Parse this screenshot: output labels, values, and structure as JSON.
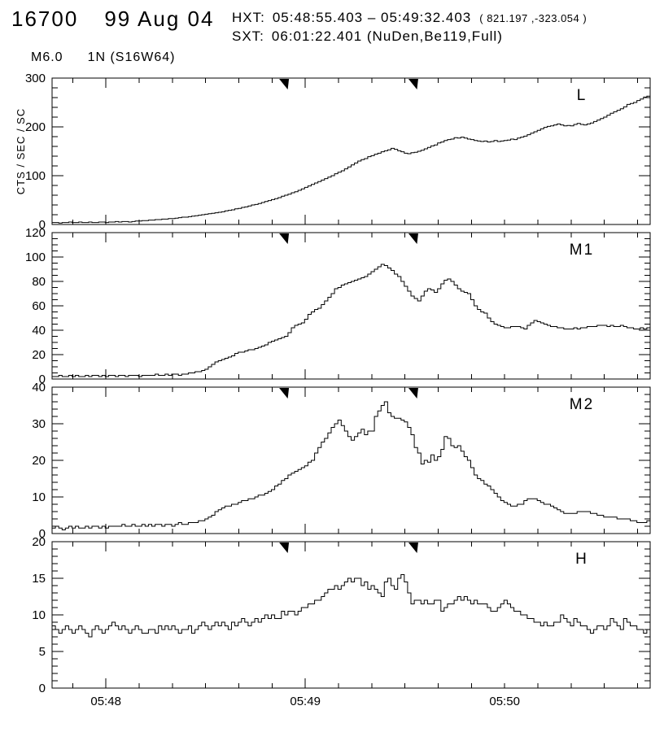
{
  "header": {
    "event_id": "16700",
    "date": "99 Aug 04",
    "hxt_label": "HXT:",
    "hxt_interval": "05:48:55.403 – 05:49:32.403",
    "hxt_coords": "( 821.197 ,-323.054 )",
    "sxt_label": "SXT:",
    "sxt_info": "06:01:22.401 (NuDen,Be119,Full)",
    "goes_class": "M6.0",
    "flare_class_location": "1N (S16W64)"
  },
  "colors": {
    "foreground": "#000000",
    "background": "#ffffff"
  },
  "chart_data": {
    "type": "line",
    "style": "step-histogram",
    "ylabel": "CTS / SEC / SC",
    "x_start_time": "05:47:44",
    "x_end_time": "05:50:44",
    "duration_sec": 180,
    "sample_interval_sec": 1,
    "x_tick_labels": [
      "05:48",
      "05:49",
      "05:50"
    ],
    "x_tick_times_sec": [
      16.2,
      76.2,
      136.2
    ],
    "x_minor_tick_step_sec": 10,
    "marker_times_sec": [
      70.8,
      109.7
    ],
    "grid": false,
    "panels": [
      {
        "label": "L",
        "ymax": 300,
        "yticks": [
          0,
          100,
          200,
          300
        ],
        "y_minor_step": 20,
        "values": [
          4,
          4,
          3,
          4,
          4,
          5,
          4,
          4,
          5,
          4,
          4,
          5,
          4,
          4,
          5,
          5,
          4,
          5,
          5,
          6,
          5,
          6,
          6,
          5,
          6,
          7,
          7,
          8,
          8,
          9,
          9,
          10,
          10,
          11,
          11,
          12,
          12,
          13,
          14,
          15,
          15,
          16,
          17,
          18,
          19,
          20,
          21,
          22,
          23,
          24,
          25,
          26,
          28,
          29,
          30,
          32,
          33,
          35,
          36,
          38,
          40,
          41,
          43,
          45,
          47,
          49,
          51,
          53,
          55,
          58,
          60,
          62,
          65,
          67,
          70,
          73,
          76,
          79,
          82,
          85,
          88,
          91,
          94,
          97,
          100,
          104,
          107,
          110,
          114,
          118,
          122,
          126,
          130,
          133,
          135,
          139,
          141,
          144,
          146,
          149,
          151,
          153,
          156,
          154,
          151,
          149,
          146,
          145,
          147,
          148,
          150,
          152,
          155,
          158,
          161,
          163,
          167,
          169,
          172,
          174,
          175,
          178,
          177,
          179,
          177,
          175,
          174,
          172,
          171,
          170,
          171,
          169,
          170,
          172,
          170,
          171,
          172,
          173,
          175,
          174,
          177,
          179,
          181,
          184,
          187,
          190,
          193,
          196,
          199,
          201,
          202,
          204,
          206,
          204,
          202,
          203,
          202,
          205,
          207,
          205,
          204,
          206,
          208,
          211,
          214,
          217,
          220,
          224,
          228,
          231,
          234,
          237,
          241,
          246,
          248,
          250,
          254,
          257,
          261,
          263,
          267
        ]
      },
      {
        "label": "M1",
        "ymax": 120,
        "yticks": [
          0,
          20,
          40,
          60,
          80,
          100,
          120
        ],
        "y_minor_step": 5,
        "values": [
          2,
          2,
          3,
          2,
          2,
          3,
          2,
          3,
          2,
          2,
          3,
          2,
          3,
          3,
          2,
          3,
          2,
          3,
          3,
          2,
          3,
          3,
          2,
          3,
          3,
          3,
          2,
          3,
          3,
          3,
          3,
          4,
          3,
          3,
          4,
          3,
          4,
          4,
          3,
          4,
          4,
          5,
          5,
          6,
          6,
          7,
          8,
          10,
          12,
          14,
          15,
          16,
          17,
          18,
          19,
          21,
          22,
          22,
          23,
          24,
          24,
          25,
          26,
          27,
          28,
          30,
          31,
          32,
          33,
          34,
          35,
          38,
          42,
          44,
          45,
          46,
          49,
          53,
          55,
          57,
          58,
          61,
          64,
          67,
          70,
          74,
          75,
          77,
          78,
          79,
          80,
          81,
          82,
          83,
          84,
          86,
          88,
          90,
          92,
          94,
          93,
          91,
          89,
          86,
          84,
          80,
          76,
          72,
          68,
          66,
          64,
          68,
          72,
          74,
          73,
          71,
          74,
          78,
          81,
          82,
          80,
          77,
          74,
          72,
          71,
          70,
          65,
          60,
          57,
          55,
          54,
          50,
          47,
          45,
          44,
          43,
          42,
          42,
          43,
          43,
          43,
          42,
          41,
          44,
          46,
          48,
          47,
          46,
          45,
          44,
          43,
          43,
          42,
          42,
          41,
          41,
          41,
          42,
          41,
          42,
          42,
          43,
          43,
          43,
          44,
          44,
          44,
          43,
          44,
          43,
          43,
          44,
          43,
          42,
          42,
          41,
          41,
          42,
          41,
          42,
          44
        ]
      },
      {
        "label": "M2",
        "ymax": 40,
        "yticks": [
          0,
          10,
          20,
          30,
          40
        ],
        "y_minor_step": 2,
        "values": [
          1.5,
          2,
          1.5,
          1,
          1.5,
          2,
          1.5,
          2,
          1.5,
          1.5,
          2,
          1.5,
          2,
          2,
          1.5,
          2,
          1.5,
          2,
          2,
          2,
          2,
          2.5,
          2,
          2,
          2.5,
          2,
          2,
          2.5,
          2,
          2.5,
          2,
          2.5,
          2.5,
          2,
          2.5,
          2.5,
          2,
          2.5,
          3,
          2.5,
          2.5,
          3,
          3,
          3,
          3.5,
          3.5,
          4,
          4.5,
          5,
          6,
          6.5,
          7,
          7.5,
          7.5,
          8,
          8,
          8.5,
          9,
          9,
          9.5,
          9.5,
          10,
          10.5,
          10.5,
          11,
          11.5,
          12,
          13,
          13.5,
          14.5,
          15,
          16,
          16.5,
          17,
          17.5,
          18,
          18.5,
          19.5,
          20,
          22,
          23.5,
          25,
          26,
          27.5,
          29,
          30,
          31,
          29.5,
          28,
          26.5,
          25.5,
          26.5,
          27.5,
          28.5,
          27,
          28,
          28,
          32,
          33.5,
          35,
          36,
          33,
          32,
          31.5,
          31.5,
          31,
          30.5,
          29,
          27,
          23.5,
          22,
          19,
          20,
          19.5,
          21.5,
          20,
          21,
          23,
          26.5,
          26,
          24,
          23.5,
          24,
          22.5,
          21,
          20,
          18,
          16,
          15,
          14.5,
          13.5,
          13,
          12,
          11,
          10,
          9,
          8.5,
          8,
          7.5,
          7.5,
          8,
          8,
          9,
          9.5,
          9.5,
          9.5,
          9,
          8.5,
          8,
          8,
          7.5,
          7,
          6.5,
          6,
          5.5,
          5.5,
          5.5,
          5.5,
          6,
          6,
          6,
          6,
          5.5,
          5.5,
          5,
          5,
          4.5,
          4.5,
          4.5,
          4.5,
          4,
          4,
          4,
          4,
          3.5,
          3.5,
          3,
          3,
          3,
          3.5,
          4
        ]
      },
      {
        "label": "H",
        "ymax": 20,
        "yticks": [
          0,
          5,
          10,
          15,
          20
        ],
        "y_minor_step": 1,
        "values": [
          8.5,
          8,
          7.5,
          8,
          8.5,
          8,
          7.5,
          8,
          8.5,
          8,
          7.5,
          7,
          8,
          8.5,
          8,
          7.5,
          8,
          8.5,
          9,
          8.5,
          8,
          8.5,
          8,
          7.5,
          8,
          8.5,
          8,
          7.5,
          7.5,
          8,
          8,
          7.5,
          8.5,
          8,
          8.5,
          8,
          8.5,
          8,
          7.5,
          8,
          8,
          8.5,
          7.5,
          8,
          8.5,
          9,
          8.5,
          8,
          8.5,
          9,
          8.5,
          9,
          8.5,
          8,
          9,
          8.5,
          9,
          9.5,
          9,
          8.5,
          9,
          9.5,
          9,
          9.5,
          10,
          9.5,
          10,
          9.5,
          9.5,
          10.5,
          10,
          10.5,
          10.5,
          10,
          10.5,
          11,
          11,
          11.5,
          11.5,
          12,
          12,
          12.5,
          13,
          13.5,
          13.5,
          14,
          13.5,
          14,
          14.5,
          15,
          14.5,
          15,
          15,
          14,
          14.5,
          13.5,
          14,
          13.5,
          13,
          12.5,
          14.5,
          15,
          14,
          13.5,
          15,
          15.5,
          14.5,
          13,
          11.5,
          12,
          12,
          11.5,
          12,
          11.5,
          11.5,
          12,
          12,
          10.5,
          11,
          11.5,
          11.5,
          12,
          12.5,
          12,
          12.5,
          12,
          11.5,
          12,
          11.5,
          11.5,
          11.5,
          11,
          10.5,
          10.5,
          11,
          11.5,
          12,
          11.5,
          11,
          10.5,
          10.5,
          10,
          10,
          9.5,
          9.5,
          9,
          9,
          8.5,
          9,
          8.5,
          8.5,
          9,
          9,
          10,
          9.5,
          9,
          8.5,
          9.5,
          9,
          8.5,
          8.5,
          8,
          7.5,
          8,
          8.5,
          8.5,
          8,
          8.5,
          9.5,
          9,
          8.5,
          8,
          9.5,
          9,
          8.5,
          8.5,
          8,
          8,
          7.5,
          8,
          8.5
        ]
      }
    ]
  }
}
